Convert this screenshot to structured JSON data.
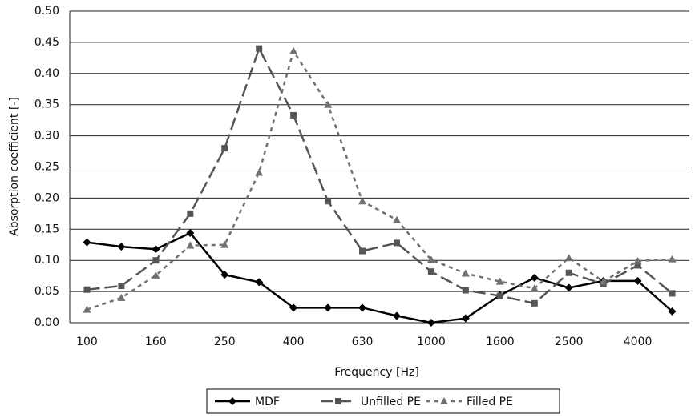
{
  "chart_data": {
    "type": "line",
    "x_label": "Frequency [Hz]",
    "y_label": "Absorption coefficient [-]",
    "categories": [
      "100",
      null,
      "160",
      null,
      "250",
      null,
      "400",
      null,
      "630",
      null,
      "1000",
      null,
      "1600",
      null,
      "2500",
      null,
      "4000",
      null
    ],
    "ylim": [
      0,
      0.5
    ],
    "yticks": [
      {
        "value": 0,
        "label": "0.00"
      },
      {
        "value": 0.05,
        "label": "0.05"
      },
      {
        "value": 0.1,
        "label": "0.10"
      },
      {
        "value": 0.15,
        "label": "0.15"
      },
      {
        "value": 0.2,
        "label": "0.20"
      },
      {
        "value": 0.25,
        "label": "0.25"
      },
      {
        "value": 0.3,
        "label": "0.30"
      },
      {
        "value": 0.35,
        "label": "0.35"
      },
      {
        "value": 0.4,
        "label": "0.40"
      },
      {
        "value": 0.45,
        "label": "0.45"
      },
      {
        "value": 0.5,
        "label": "0.50"
      }
    ],
    "grid": true,
    "legend": "bottom",
    "series": [
      {
        "name": "MDF",
        "color": "#000000",
        "marker": "diamond",
        "line_style": "solid",
        "values": [
          0.129,
          0.122,
          0.118,
          0.144,
          0.077,
          0.065,
          0.024,
          0.024,
          0.024,
          0.011,
          0.0,
          0.007,
          0.044,
          0.072,
          0.056,
          0.067,
          0.067,
          0.018
        ]
      },
      {
        "name": "Unfilled PE",
        "color": "#555555",
        "marker": "square",
        "line_style": "long-dash",
        "values": [
          0.053,
          0.059,
          0.1,
          0.175,
          0.28,
          0.44,
          0.333,
          0.195,
          0.115,
          0.128,
          0.082,
          0.052,
          0.043,
          0.031,
          0.08,
          0.062,
          0.092,
          0.047
        ]
      },
      {
        "name": "Filled PE",
        "color": "#707070",
        "marker": "triangle",
        "line_style": "dash",
        "values": [
          0.021,
          0.04,
          0.076,
          0.124,
          0.125,
          0.241,
          0.436,
          0.35,
          0.195,
          0.165,
          0.101,
          0.079,
          0.066,
          0.055,
          0.104,
          0.066,
          0.099,
          0.102
        ]
      }
    ]
  }
}
